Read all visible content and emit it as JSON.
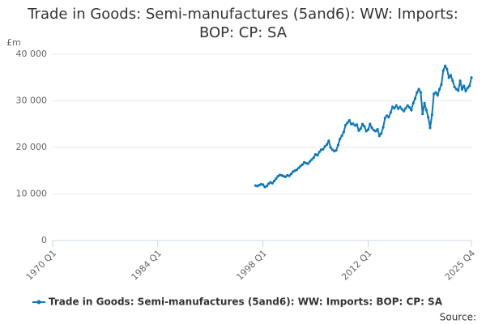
{
  "chart_data": {
    "type": "line",
    "title": "Trade in Goods: Semi-manufactures (5and6): WW: Imports: BOP: CP: SA",
    "y_label": "£m",
    "source": "Source:",
    "xlim": [
      "1970 Q1",
      "2025 Q4"
    ],
    "xticks": [
      "1970 Q1",
      "1984 Q1",
      "1998 Q1",
      "2012 Q1",
      "2025 Q4"
    ],
    "ylim": [
      0,
      40000
    ],
    "yticks": [
      0,
      {
        "value": 10000,
        "label": "10 000"
      },
      {
        "value": 20000,
        "label": "20 000"
      },
      {
        "value": 30000,
        "label": "30 000"
      },
      {
        "value": 40000,
        "label": "40 000"
      }
    ],
    "grid": true,
    "legend": "bottom",
    "x": [
      "1997 Q1",
      "1997 Q2",
      "1997 Q3",
      "1997 Q4",
      "1998 Q1",
      "1998 Q2",
      "1998 Q3",
      "1998 Q4",
      "1999 Q1",
      "1999 Q2",
      "1999 Q3",
      "1999 Q4",
      "2000 Q1",
      "2000 Q2",
      "2000 Q3",
      "2000 Q4",
      "2001 Q1",
      "2001 Q2",
      "2001 Q3",
      "2001 Q4",
      "2002 Q1",
      "2002 Q2",
      "2002 Q3",
      "2002 Q4",
      "2003 Q1",
      "2003 Q2",
      "2003 Q3",
      "2003 Q4",
      "2004 Q1",
      "2004 Q2",
      "2004 Q3",
      "2004 Q4",
      "2005 Q1",
      "2005 Q2",
      "2005 Q3",
      "2005 Q4",
      "2006 Q1",
      "2006 Q2",
      "2006 Q3",
      "2006 Q4",
      "2007 Q1",
      "2007 Q2",
      "2007 Q3",
      "2007 Q4",
      "2008 Q1",
      "2008 Q2",
      "2008 Q3",
      "2008 Q4",
      "2009 Q1",
      "2009 Q2",
      "2009 Q3",
      "2009 Q4",
      "2010 Q1",
      "2010 Q2",
      "2010 Q3",
      "2010 Q4",
      "2011 Q1",
      "2011 Q2",
      "2011 Q3",
      "2011 Q4",
      "2012 Q1",
      "2012 Q2",
      "2012 Q3",
      "2012 Q4",
      "2013 Q1",
      "2013 Q2",
      "2013 Q3",
      "2013 Q4",
      "2014 Q1",
      "2014 Q2",
      "2014 Q3",
      "2014 Q4",
      "2015 Q1",
      "2015 Q2",
      "2015 Q3",
      "2015 Q4",
      "2016 Q1",
      "2016 Q2",
      "2016 Q3",
      "2016 Q4",
      "2017 Q1",
      "2017 Q2",
      "2017 Q3",
      "2017 Q4",
      "2018 Q1",
      "2018 Q2",
      "2018 Q3",
      "2018 Q4",
      "2019 Q1",
      "2019 Q2",
      "2019 Q3",
      "2019 Q4",
      "2020 Q1",
      "2020 Q2",
      "2020 Q3",
      "2020 Q4",
      "2021 Q1",
      "2021 Q2",
      "2021 Q3",
      "2021 Q4",
      "2022 Q1",
      "2022 Q2",
      "2022 Q3",
      "2022 Q4",
      "2023 Q1",
      "2023 Q2",
      "2023 Q3",
      "2023 Q4",
      "2024 Q1",
      "2024 Q2",
      "2024 Q3",
      "2024 Q4",
      "2025 Q1",
      "2025 Q2",
      "2025 Q3",
      "2025 Q4"
    ],
    "series": [
      {
        "name": "Trade in Goods: Semi-manufactures (5and6): WW: Imports: BOP: CP: SA",
        "color": "#0b77bd",
        "values": [
          11800,
          11700,
          11900,
          12100,
          12000,
          11500,
          11700,
          12200,
          12500,
          12300,
          12800,
          13300,
          13800,
          14100,
          14000,
          13800,
          13700,
          14000,
          13900,
          14300,
          14800,
          15000,
          15200,
          15600,
          16000,
          16300,
          16800,
          16600,
          16500,
          17000,
          17400,
          17800,
          18500,
          18300,
          19000,
          19500,
          19600,
          20200,
          20600,
          21400,
          20000,
          19500,
          19200,
          19400,
          20500,
          21800,
          22500,
          23300,
          24800,
          25300,
          25800,
          25000,
          25100,
          24700,
          24900,
          23600,
          24000,
          25000,
          24500,
          23500,
          23800,
          25000,
          24200,
          23700,
          23500,
          23900,
          22500,
          23000,
          24300,
          26300,
          26800,
          26500,
          27500,
          28700,
          28400,
          29000,
          28300,
          28700,
          28200,
          27800,
          28400,
          29000,
          28600,
          28000,
          29500,
          30500,
          31800,
          32500,
          31800,
          27200,
          29500,
          28000,
          26500,
          24200,
          27000,
          31500,
          31800,
          31200,
          32500,
          33500,
          36500,
          37500,
          36800,
          35000,
          35500,
          34300,
          33000,
          32500,
          32200,
          34300,
          32500,
          33200,
          32100,
          32800,
          33200,
          35000
        ]
      }
    ]
  }
}
